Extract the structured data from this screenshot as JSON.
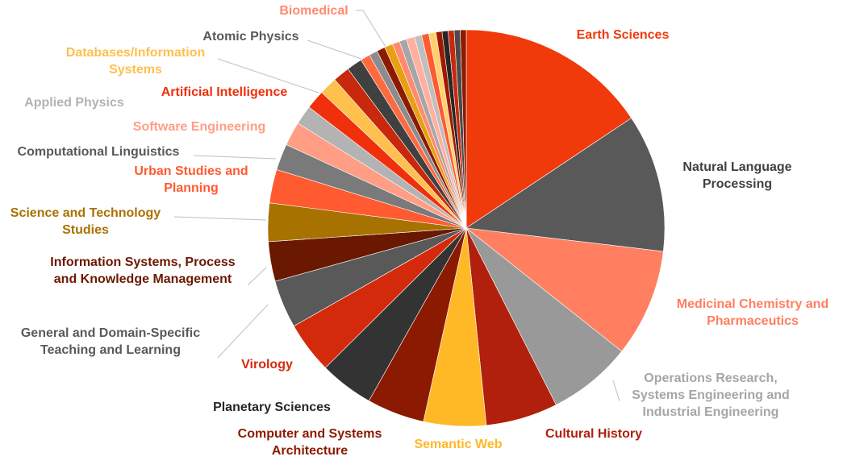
{
  "chart_data": {
    "type": "pie",
    "title": "",
    "start_angle_deg": 0,
    "direction": "clockwise",
    "total": 100,
    "slices": [
      {
        "label": "Earth Sciences",
        "value": 16.0,
        "color": "#F03A0C",
        "label_color": "#F03A0C"
      },
      {
        "label": "Natural Language Processing",
        "value": 11.5,
        "color": "#595959",
        "label_color": "#404040"
      },
      {
        "label": "Medicinal Chemistry and Pharmaceutics",
        "value": 9.0,
        "color": "#FF7F60",
        "label_color": "#FF7F60"
      },
      {
        "label": "Operations Research, Systems Engineering and Industrial Engineering",
        "value": 7.0,
        "color": "#999999",
        "label_color": "#A6A6A6"
      },
      {
        "label": "Cultural History",
        "value": 6.0,
        "color": "#B0200C",
        "label_color": "#B0200C"
      },
      {
        "label": "Semantic Web",
        "value": 5.2,
        "color": "#FFB826",
        "label_color": "#FFB826"
      },
      {
        "label": "Computer and Systems Architecture",
        "value": 4.8,
        "color": "#8C1A00",
        "label_color": "#8C1A00"
      },
      {
        "label": "Planetary Sciences",
        "value": 4.5,
        "color": "#333333",
        "label_color": "#262626"
      },
      {
        "label": "Virology",
        "value": 4.3,
        "color": "#D42A0C",
        "label_color": "#D42A0C"
      },
      {
        "label": "General and Domain-Specific Teaching and Learning",
        "value": 4.0,
        "color": "#595959",
        "label_color": "#595959"
      },
      {
        "label": "Information Systems, Process and Knowledge Management",
        "value": 3.3,
        "color": "#6B1800",
        "label_color": "#6B1800"
      },
      {
        "label": "Science and Technology Studies",
        "value": 3.2,
        "color": "#A87200",
        "label_color": "#A87200"
      },
      {
        "label": "Urban Studies and Planning",
        "value": 2.8,
        "color": "#FF5A30",
        "label_color": "#FF5A30"
      },
      {
        "label": "Computational Linguistics",
        "value": 2.2,
        "color": "#7A7A7A",
        "label_color": "#595959"
      },
      {
        "label": "Software Engineering",
        "value": 2.0,
        "color": "#FF9E85",
        "label_color": "#FF9E85"
      },
      {
        "label": "Applied Physics",
        "value": 1.6,
        "color": "#B3B3B3",
        "label_color": "#B3B3B3"
      },
      {
        "label": "Artificial Intelligence",
        "value": 1.6,
        "color": "#F0300C",
        "label_color": "#F0300C"
      },
      {
        "label": "Databases/Information Systems",
        "value": 1.5,
        "color": "#FFC04D",
        "label_color": "#FFC04D"
      },
      {
        "label": "",
        "value": 1.4,
        "color": "#C8280C"
      },
      {
        "label": "",
        "value": 1.3,
        "color": "#404040"
      },
      {
        "label": "",
        "value": 0.8,
        "color": "#FF6A40"
      },
      {
        "label": "",
        "value": 0.7,
        "color": "#8C8C8C"
      },
      {
        "label": "Atomic Physics",
        "value": 0.7,
        "color": "#8C1A00",
        "label_color": "#595959"
      },
      {
        "label": "",
        "value": 0.7,
        "color": "#E8A010"
      },
      {
        "label": "Biomedical",
        "value": 0.6,
        "color": "#FF8A70",
        "label_color": "#FF8A70"
      },
      {
        "label": "",
        "value": 0.6,
        "color": "#A6A6A6"
      },
      {
        "label": "",
        "value": 0.7,
        "color": "#FFB0A0"
      },
      {
        "label": "",
        "value": 0.6,
        "color": "#BFBFBF"
      },
      {
        "label": "",
        "value": 0.6,
        "color": "#FF5A30"
      },
      {
        "label": "",
        "value": 0.6,
        "color": "#FFD070"
      },
      {
        "label": "",
        "value": 0.5,
        "color": "#A01800"
      },
      {
        "label": "",
        "value": 0.5,
        "color": "#262626"
      },
      {
        "label": "",
        "value": 0.5,
        "color": "#C8280C"
      },
      {
        "label": "",
        "value": 0.5,
        "color": "#4A4A4A"
      },
      {
        "label": "",
        "value": 0.5,
        "color": "#8C1A00"
      }
    ]
  }
}
